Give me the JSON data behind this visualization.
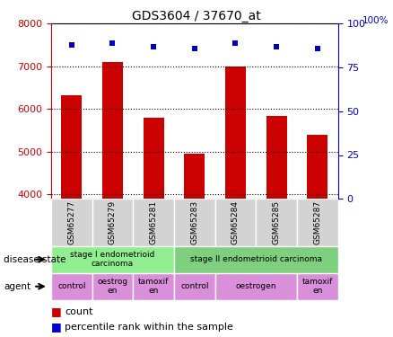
{
  "title": "GDS3604 / 37670_at",
  "samples": [
    "GSM65277",
    "GSM65279",
    "GSM65281",
    "GSM65283",
    "GSM65284",
    "GSM65285",
    "GSM65287"
  ],
  "counts": [
    6330,
    7100,
    5800,
    4950,
    7000,
    5850,
    5400
  ],
  "percentile_ranks": [
    88,
    89,
    87,
    86,
    89,
    87,
    86
  ],
  "ylim_left": [
    3900,
    8000
  ],
  "ylim_right": [
    0,
    100
  ],
  "yticks_left": [
    4000,
    5000,
    6000,
    7000,
    8000
  ],
  "yticks_right": [
    0,
    25,
    50,
    75,
    100
  ],
  "bar_color": "#cc0000",
  "dot_color": "#0000cc",
  "sample_box_color": "#d3d3d3",
  "disease_state_groups": [
    {
      "label": "stage I endometrioid\ncarcinoma",
      "start": 0,
      "end": 3,
      "color": "#90ee90"
    },
    {
      "label": "stage II endometrioid carcinoma",
      "start": 3,
      "end": 7,
      "color": "#7ecf7e"
    }
  ],
  "agent_groups": [
    {
      "label": "control",
      "start": 0,
      "end": 1,
      "color": "#da8fda"
    },
    {
      "label": "oestrog\nen",
      "start": 1,
      "end": 2,
      "color": "#da8fda"
    },
    {
      "label": "tamoxif\nen",
      "start": 2,
      "end": 3,
      "color": "#da8fda"
    },
    {
      "label": "control",
      "start": 3,
      "end": 4,
      "color": "#da8fda"
    },
    {
      "label": "oestrogen",
      "start": 4,
      "end": 6,
      "color": "#da8fda"
    },
    {
      "label": "tamoxif\nen",
      "start": 6,
      "end": 7,
      "color": "#da8fda"
    }
  ],
  "tick_label_color_left": "#cc0000",
  "tick_label_color_right": "#0000cc"
}
